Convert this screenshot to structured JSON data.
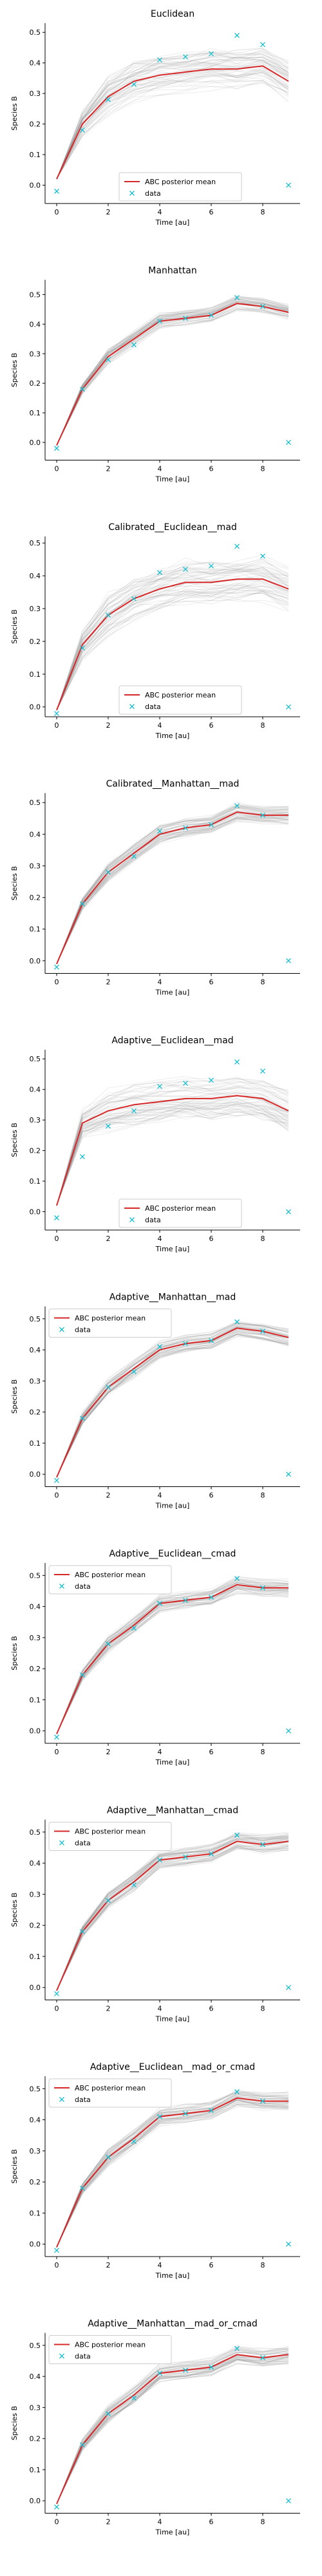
{
  "shared": {
    "xlabel": "Time [au]",
    "ylabel": "Species B",
    "legend_mean_label": "ABC posterior mean",
    "legend_data_label": "data",
    "xlim": [
      -0.45,
      9.45
    ],
    "x_ticks": [
      0,
      2,
      4,
      6,
      8
    ],
    "colors": {
      "mean": "#d62728",
      "data": "#17becf",
      "samples": "#888888"
    },
    "data_x": [
      0,
      1,
      2,
      3,
      4,
      5,
      6,
      7,
      8,
      9
    ],
    "data_y": [
      -0.02,
      0.18,
      0.28,
      0.33,
      0.41,
      0.42,
      0.43,
      0.49,
      0.46,
      0.0
    ]
  },
  "chart_data": [
    {
      "type": "line",
      "title": "Euclidean",
      "ylim": [
        -0.06,
        0.53
      ],
      "y_ticks": [
        0.0,
        0.1,
        0.2,
        0.3,
        0.4,
        0.5
      ],
      "legend": "lower-center",
      "spread": 0.06,
      "series": [
        {
          "name": "ABC posterior mean",
          "x": [
            0,
            1,
            2,
            3,
            4,
            5,
            6,
            7,
            8,
            9
          ],
          "y": [
            0.02,
            0.2,
            0.29,
            0.34,
            0.36,
            0.37,
            0.38,
            0.38,
            0.39,
            0.34
          ]
        }
      ]
    },
    {
      "type": "line",
      "title": "Manhattan",
      "ylim": [
        -0.06,
        0.55
      ],
      "y_ticks": [
        0.0,
        0.1,
        0.2,
        0.3,
        0.4,
        0.5
      ],
      "legend": "none",
      "spread": 0.025,
      "series": [
        {
          "name": "ABC posterior mean",
          "x": [
            0,
            1,
            2,
            3,
            4,
            5,
            6,
            7,
            8,
            9
          ],
          "y": [
            -0.01,
            0.18,
            0.29,
            0.35,
            0.41,
            0.42,
            0.43,
            0.47,
            0.46,
            0.44
          ]
        }
      ]
    },
    {
      "type": "line",
      "title": "Calibrated__Euclidean__mad",
      "ylim": [
        -0.03,
        0.52
      ],
      "y_ticks": [
        0.0,
        0.1,
        0.2,
        0.3,
        0.4,
        0.5
      ],
      "legend": "lower-center",
      "spread": 0.06,
      "series": [
        {
          "name": "ABC posterior mean",
          "x": [
            0,
            1,
            2,
            3,
            4,
            5,
            6,
            7,
            8,
            9
          ],
          "y": [
            -0.01,
            0.19,
            0.28,
            0.33,
            0.36,
            0.38,
            0.38,
            0.39,
            0.39,
            0.36
          ]
        }
      ]
    },
    {
      "type": "line",
      "title": "Calibrated__Manhattan__mad",
      "ylim": [
        -0.04,
        0.53
      ],
      "y_ticks": [
        0.0,
        0.1,
        0.2,
        0.3,
        0.4,
        0.5
      ],
      "legend": "none",
      "spread": 0.025,
      "series": [
        {
          "name": "ABC posterior mean",
          "x": [
            0,
            1,
            2,
            3,
            4,
            5,
            6,
            7,
            8,
            9
          ],
          "y": [
            -0.01,
            0.18,
            0.28,
            0.34,
            0.4,
            0.42,
            0.43,
            0.47,
            0.46,
            0.46
          ]
        }
      ]
    },
    {
      "type": "line",
      "title": "Adaptive__Euclidean__mad",
      "ylim": [
        -0.06,
        0.53
      ],
      "y_ticks": [
        0.0,
        0.1,
        0.2,
        0.3,
        0.4,
        0.5
      ],
      "legend": "lower-center",
      "spread": 0.06,
      "series": [
        {
          "name": "ABC posterior mean",
          "x": [
            0,
            1,
            2,
            3,
            4,
            5,
            6,
            7,
            8,
            9
          ],
          "y": [
            0.02,
            0.29,
            0.33,
            0.35,
            0.36,
            0.37,
            0.37,
            0.38,
            0.37,
            0.33
          ]
        }
      ]
    },
    {
      "type": "line",
      "title": "Adaptive__Manhattan__mad",
      "ylim": [
        -0.04,
        0.54
      ],
      "y_ticks": [
        0.0,
        0.1,
        0.2,
        0.3,
        0.4,
        0.5
      ],
      "legend": "upper-left",
      "spread": 0.025,
      "series": [
        {
          "name": "ABC posterior mean",
          "x": [
            0,
            1,
            2,
            3,
            4,
            5,
            6,
            7,
            8,
            9
          ],
          "y": [
            -0.01,
            0.18,
            0.28,
            0.34,
            0.4,
            0.42,
            0.43,
            0.47,
            0.46,
            0.44
          ]
        }
      ]
    },
    {
      "type": "line",
      "title": "Adaptive__Euclidean__cmad",
      "ylim": [
        -0.04,
        0.54
      ],
      "y_ticks": [
        0.0,
        0.1,
        0.2,
        0.3,
        0.4,
        0.5
      ],
      "legend": "upper-left",
      "spread": 0.025,
      "series": [
        {
          "name": "ABC posterior mean",
          "x": [
            0,
            1,
            2,
            3,
            4,
            5,
            6,
            7,
            8,
            9
          ],
          "y": [
            -0.01,
            0.18,
            0.28,
            0.34,
            0.41,
            0.42,
            0.43,
            0.47,
            0.46,
            0.46
          ]
        }
      ]
    },
    {
      "type": "line",
      "title": "Adaptive__Manhattan__cmad",
      "ylim": [
        -0.04,
        0.54
      ],
      "y_ticks": [
        0.0,
        0.1,
        0.2,
        0.3,
        0.4,
        0.5
      ],
      "legend": "upper-left",
      "spread": 0.025,
      "series": [
        {
          "name": "ABC posterior mean",
          "x": [
            0,
            1,
            2,
            3,
            4,
            5,
            6,
            7,
            8,
            9
          ],
          "y": [
            -0.01,
            0.18,
            0.28,
            0.34,
            0.41,
            0.42,
            0.43,
            0.47,
            0.46,
            0.47
          ]
        }
      ]
    },
    {
      "type": "line",
      "title": "Adaptive__Euclidean__mad_or_cmad",
      "ylim": [
        -0.04,
        0.54
      ],
      "y_ticks": [
        0.0,
        0.1,
        0.2,
        0.3,
        0.4,
        0.5
      ],
      "legend": "upper-left",
      "spread": 0.025,
      "series": [
        {
          "name": "ABC posterior mean",
          "x": [
            0,
            1,
            2,
            3,
            4,
            5,
            6,
            7,
            8,
            9
          ],
          "y": [
            -0.01,
            0.18,
            0.28,
            0.34,
            0.41,
            0.42,
            0.43,
            0.47,
            0.46,
            0.46
          ]
        }
      ]
    },
    {
      "type": "line",
      "title": "Adaptive__Manhattan__mad_or_cmad",
      "ylim": [
        -0.04,
        0.54
      ],
      "y_ticks": [
        0.0,
        0.1,
        0.2,
        0.3,
        0.4,
        0.5
      ],
      "legend": "upper-left",
      "spread": 0.025,
      "series": [
        {
          "name": "ABC posterior mean",
          "x": [
            0,
            1,
            2,
            3,
            4,
            5,
            6,
            7,
            8,
            9
          ],
          "y": [
            -0.01,
            0.18,
            0.28,
            0.34,
            0.41,
            0.42,
            0.43,
            0.47,
            0.46,
            0.47
          ]
        }
      ]
    }
  ]
}
